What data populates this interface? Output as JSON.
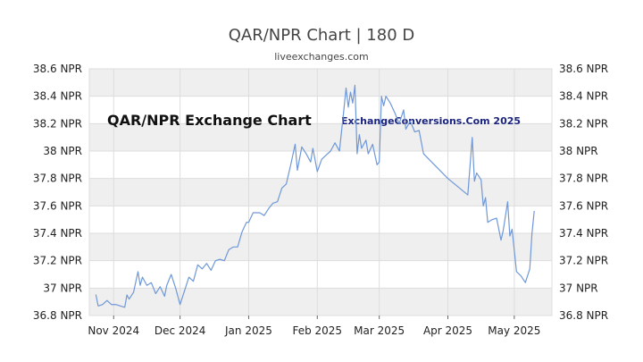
{
  "chart_data": {
    "type": "line",
    "title": "QAR/NPR Chart | 180 D",
    "subtitle": "liveexchanges.com",
    "annotations": [
      "QAR/NPR Exchange Chart",
      "ExchangeConversions.Com 2025"
    ],
    "colors": {
      "line": "#6f98d8",
      "band": "#efefef",
      "grid": "#dddddd",
      "axis": "#666666",
      "text": "#222222"
    },
    "grid": true,
    "legend": "none",
    "x_range": [
      "2024-10-21",
      "2025-05-18"
    ],
    "ylim": [
      36.8,
      38.6
    ],
    "y_ticks": [
      36.8,
      37.0,
      37.2,
      37.4,
      37.6,
      37.8,
      38.0,
      38.2,
      38.4,
      38.6
    ],
    "y_tick_labels": [
      "36.8 NPR",
      "37 NPR",
      "37.2 NPR",
      "37.4 NPR",
      "37.6 NPR",
      "37.8 NPR",
      "38 NPR",
      "38.2 NPR",
      "38.4 NPR",
      "38.6 NPR"
    ],
    "x_ticks": [
      "2024-11-01",
      "2024-12-01",
      "2025-01-01",
      "2025-02-01",
      "2025-03-01",
      "2025-04-01",
      "2025-05-01"
    ],
    "x_tick_labels": [
      "Nov 2024",
      "Dec 2024",
      "Jan 2025",
      "Feb 2025",
      "Mar 2025",
      "Apr 2025",
      "May 2025"
    ],
    "series": [
      {
        "values": [
          {
            "x": "2024-10-24",
            "y": 36.95
          },
          {
            "x": "2024-10-25",
            "y": 36.87
          },
          {
            "x": "2024-10-27",
            "y": 36.88
          },
          {
            "x": "2024-10-29",
            "y": 36.91
          },
          {
            "x": "2024-10-31",
            "y": 36.88
          },
          {
            "x": "2024-11-02",
            "y": 36.88
          },
          {
            "x": "2024-11-04",
            "y": 36.87
          },
          {
            "x": "2024-11-06",
            "y": 36.86
          },
          {
            "x": "2024-11-07",
            "y": 36.95
          },
          {
            "x": "2024-11-08",
            "y": 36.92
          },
          {
            "x": "2024-11-10",
            "y": 36.97
          },
          {
            "x": "2024-11-12",
            "y": 37.12
          },
          {
            "x": "2024-11-13",
            "y": 37.02
          },
          {
            "x": "2024-11-14",
            "y": 37.08
          },
          {
            "x": "2024-11-16",
            "y": 37.02
          },
          {
            "x": "2024-11-18",
            "y": 37.04
          },
          {
            "x": "2024-11-20",
            "y": 36.96
          },
          {
            "x": "2024-11-22",
            "y": 37.01
          },
          {
            "x": "2024-11-24",
            "y": 36.94
          },
          {
            "x": "2024-11-25",
            "y": 37.02
          },
          {
            "x": "2024-11-27",
            "y": 37.1
          },
          {
            "x": "2024-11-29",
            "y": 37.0
          },
          {
            "x": "2024-12-01",
            "y": 36.88
          },
          {
            "x": "2024-12-03",
            "y": 36.98
          },
          {
            "x": "2024-12-05",
            "y": 37.08
          },
          {
            "x": "2024-12-07",
            "y": 37.05
          },
          {
            "x": "2024-12-09",
            "y": 37.17
          },
          {
            "x": "2024-12-11",
            "y": 37.14
          },
          {
            "x": "2024-12-13",
            "y": 37.18
          },
          {
            "x": "2024-12-15",
            "y": 37.13
          },
          {
            "x": "2024-12-17",
            "y": 37.2
          },
          {
            "x": "2024-12-19",
            "y": 37.21
          },
          {
            "x": "2024-12-21",
            "y": 37.2
          },
          {
            "x": "2024-12-23",
            "y": 37.28
          },
          {
            "x": "2024-12-25",
            "y": 37.3
          },
          {
            "x": "2024-12-27",
            "y": 37.3
          },
          {
            "x": "2024-12-29",
            "y": 37.41
          },
          {
            "x": "2024-12-31",
            "y": 37.48
          },
          {
            "x": "2025-01-01",
            "y": 37.48
          },
          {
            "x": "2025-01-03",
            "y": 37.55
          },
          {
            "x": "2025-01-06",
            "y": 37.55
          },
          {
            "x": "2025-01-08",
            "y": 37.53
          },
          {
            "x": "2025-01-10",
            "y": 37.58
          },
          {
            "x": "2025-01-12",
            "y": 37.62
          },
          {
            "x": "2025-01-14",
            "y": 37.63
          },
          {
            "x": "2025-01-16",
            "y": 37.73
          },
          {
            "x": "2025-01-18",
            "y": 37.76
          },
          {
            "x": "2025-01-20",
            "y": 37.9
          },
          {
            "x": "2025-01-22",
            "y": 38.05
          },
          {
            "x": "2025-01-23",
            "y": 37.86
          },
          {
            "x": "2025-01-25",
            "y": 38.03
          },
          {
            "x": "2025-01-27",
            "y": 37.98
          },
          {
            "x": "2025-01-29",
            "y": 37.92
          },
          {
            "x": "2025-01-30",
            "y": 38.02
          },
          {
            "x": "2025-02-01",
            "y": 37.85
          },
          {
            "x": "2025-02-03",
            "y": 37.94
          },
          {
            "x": "2025-02-05",
            "y": 37.97
          },
          {
            "x": "2025-02-07",
            "y": 38.0
          },
          {
            "x": "2025-02-09",
            "y": 38.06
          },
          {
            "x": "2025-02-11",
            "y": 38.0
          },
          {
            "x": "2025-02-13",
            "y": 38.3
          },
          {
            "x": "2025-02-14",
            "y": 38.46
          },
          {
            "x": "2025-02-15",
            "y": 38.32
          },
          {
            "x": "2025-02-16",
            "y": 38.43
          },
          {
            "x": "2025-02-17",
            "y": 38.35
          },
          {
            "x": "2025-02-18",
            "y": 38.48
          },
          {
            "x": "2025-02-19",
            "y": 37.98
          },
          {
            "x": "2025-02-20",
            "y": 38.12
          },
          {
            "x": "2025-02-21",
            "y": 38.02
          },
          {
            "x": "2025-02-23",
            "y": 38.08
          },
          {
            "x": "2025-02-24",
            "y": 37.98
          },
          {
            "x": "2025-02-26",
            "y": 38.05
          },
          {
            "x": "2025-02-28",
            "y": 37.9
          },
          {
            "x": "2025-03-01",
            "y": 37.92
          },
          {
            "x": "2025-03-02",
            "y": 38.4
          },
          {
            "x": "2025-03-03",
            "y": 38.33
          },
          {
            "x": "2025-03-04",
            "y": 38.4
          },
          {
            "x": "2025-03-06",
            "y": 38.35
          },
          {
            "x": "2025-03-08",
            "y": 38.28
          },
          {
            "x": "2025-03-10",
            "y": 38.2
          },
          {
            "x": "2025-03-12",
            "y": 38.3
          },
          {
            "x": "2025-03-13",
            "y": 38.16
          },
          {
            "x": "2025-03-15",
            "y": 38.22
          },
          {
            "x": "2025-03-17",
            "y": 38.14
          },
          {
            "x": "2025-03-19",
            "y": 38.15
          },
          {
            "x": "2025-03-21",
            "y": 37.98
          },
          {
            "x": "2025-04-01",
            "y": 37.8
          },
          {
            "x": "2025-04-10",
            "y": 37.68
          },
          {
            "x": "2025-04-12",
            "y": 38.1
          },
          {
            "x": "2025-04-13",
            "y": 37.78
          },
          {
            "x": "2025-04-14",
            "y": 37.84
          },
          {
            "x": "2025-04-16",
            "y": 37.79
          },
          {
            "x": "2025-04-17",
            "y": 37.6
          },
          {
            "x": "2025-04-18",
            "y": 37.66
          },
          {
            "x": "2025-04-19",
            "y": 37.48
          },
          {
            "x": "2025-04-21",
            "y": 37.5
          },
          {
            "x": "2025-04-23",
            "y": 37.51
          },
          {
            "x": "2025-04-25",
            "y": 37.35
          },
          {
            "x": "2025-04-26",
            "y": 37.42
          },
          {
            "x": "2025-04-28",
            "y": 37.63
          },
          {
            "x": "2025-04-29",
            "y": 37.38
          },
          {
            "x": "2025-04-30",
            "y": 37.43
          },
          {
            "x": "2025-05-02",
            "y": 37.12
          },
          {
            "x": "2025-05-04",
            "y": 37.09
          },
          {
            "x": "2025-05-06",
            "y": 37.04
          },
          {
            "x": "2025-05-08",
            "y": 37.14
          },
          {
            "x": "2025-05-09",
            "y": 37.4
          },
          {
            "x": "2025-05-10",
            "y": 37.56
          }
        ]
      }
    ]
  }
}
